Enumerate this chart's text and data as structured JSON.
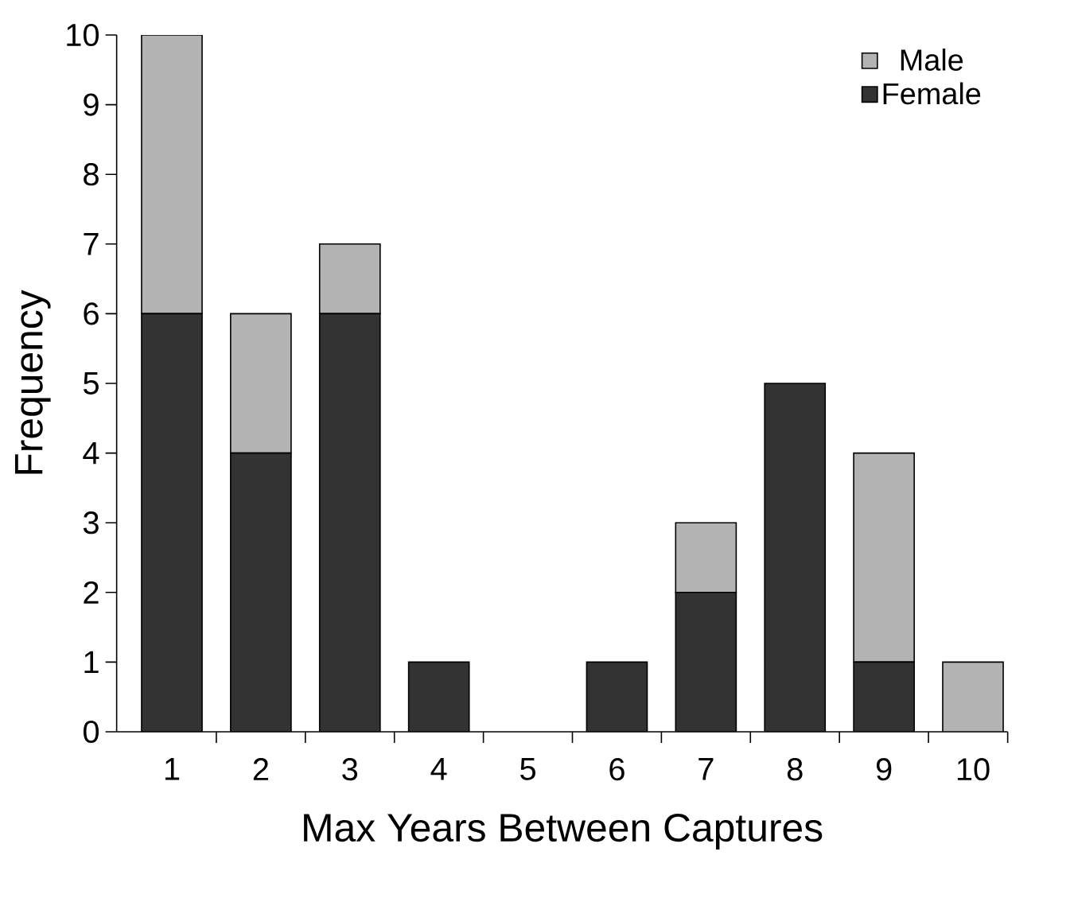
{
  "chart_data": {
    "type": "bar",
    "stacked": true,
    "xlabel": "Max Years Between Captures",
    "ylabel": "Frequency",
    "categories": [
      "1",
      "2",
      "3",
      "4",
      "5",
      "6",
      "7",
      "8",
      "9",
      "10"
    ],
    "series": [
      {
        "name": "Female",
        "color": "#333333",
        "values": [
          6,
          4,
          6,
          1,
          0,
          1,
          2,
          5,
          1,
          0
        ]
      },
      {
        "name": "Male",
        "color": "#b3b3b3",
        "values": [
          4,
          2,
          1,
          0,
          0,
          0,
          1,
          0,
          3,
          1
        ]
      }
    ],
    "ylim": [
      0,
      10
    ],
    "yticks": [
      0,
      1,
      2,
      3,
      4,
      5,
      6,
      7,
      8,
      9,
      10
    ],
    "legend": "top right"
  }
}
